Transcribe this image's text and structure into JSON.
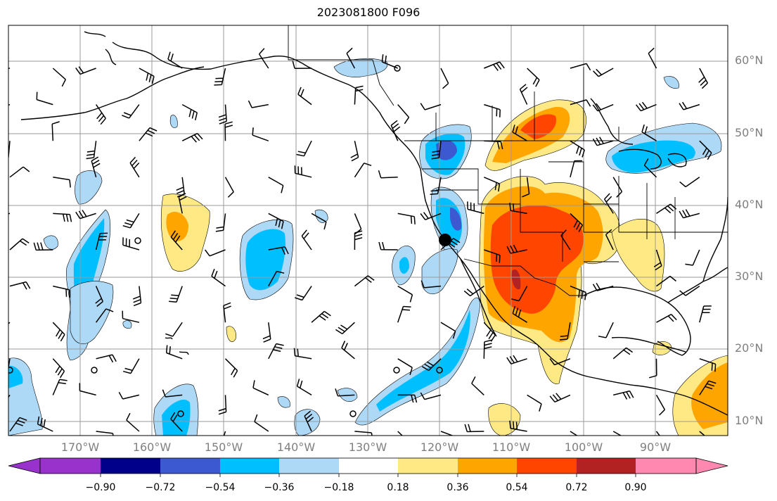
{
  "title": "2023081800 F096",
  "lat_labels": [
    "60°N",
    "50°N",
    "40°N",
    "30°N",
    "20°N",
    "10°N"
  ],
  "lon_labels": [
    "170°W",
    "160°W",
    "150°W",
    "140°W",
    "130°W",
    "120°W",
    "110°W",
    "100°W",
    "90°W"
  ],
  "colorbar": {
    "ticks": [
      "−0.90",
      "−0.72",
      "−0.54",
      "−0.36",
      "−0.18",
      "0.18",
      "0.36",
      "0.54",
      "0.72",
      "0.90"
    ],
    "colors": [
      "#9932cc",
      "#00008b",
      "#3c59d2",
      "#00bfff",
      "#add8f6",
      "#ffffff",
      "#ffe985",
      "#ffa500",
      "#ff4500",
      "#b22222",
      "#ff88b0"
    ]
  },
  "map_colors": {
    "ocean": "#ffffff",
    "grid": "#9a9a9a",
    "coast": "#000000"
  }
}
